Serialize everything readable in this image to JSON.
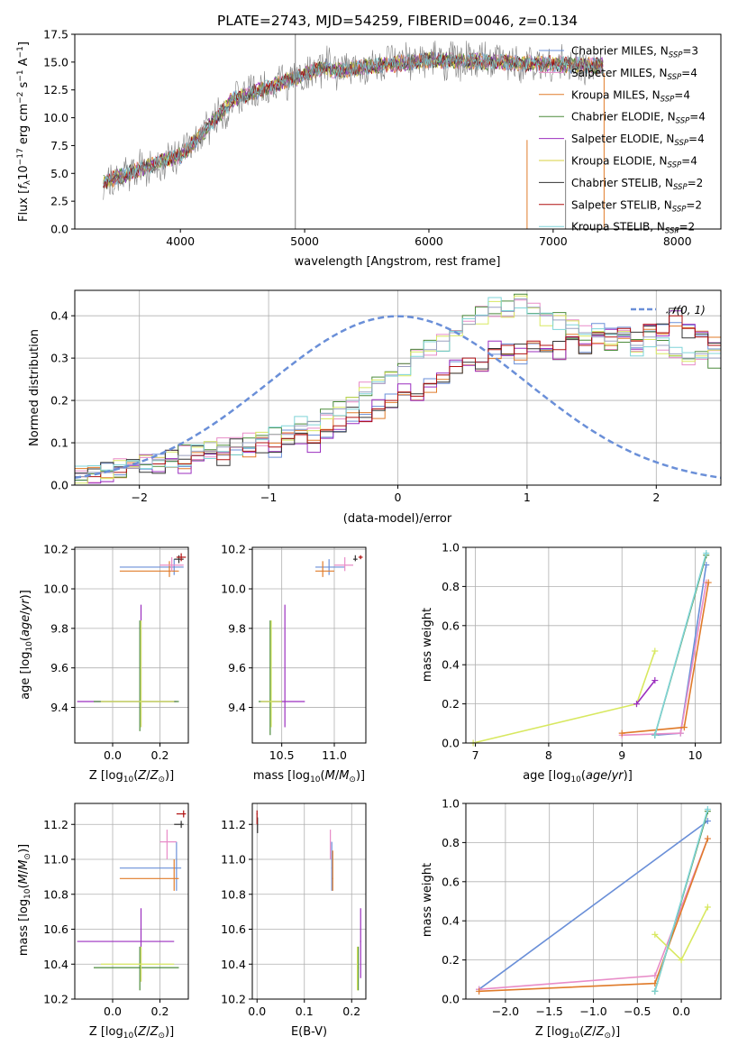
{
  "chart_data": [
    {
      "type": "line",
      "title": "PLATE=2743, MJD=54259, FIBERID=0046, z=0.134",
      "xlabel": "wavelength [Angstrom, rest frame]",
      "ylabel": "Flux [f_λ 10^-17 erg cm^-2 s^-1 A^-1]",
      "xlim": [
        3150,
        8350
      ],
      "ylim": [
        0,
        17.5
      ],
      "xticks": [
        "4000",
        "5000",
        "6000",
        "7000",
        "8000"
      ],
      "yticks": [
        "0.0",
        "2.5",
        "5.0",
        "7.5",
        "10.0",
        "12.5",
        "15.0",
        "17.5"
      ],
      "grid": false,
      "legend_position": "right",
      "series": [
        {
          "name": "Chabrier MILES, N_SSP=3",
          "color": "#6a8fd8"
        },
        {
          "name": "Salpeter MILES, N_SSP=4",
          "color": "#e88cc8"
        },
        {
          "name": "Kroupa MILES, N_SSP=4",
          "color": "#e07b2a"
        },
        {
          "name": "Chabrier ELODIE, N_SSP=4",
          "color": "#4b8b3b"
        },
        {
          "name": "Salpeter ELODIE, N_SSP=4",
          "color": "#9b2fbf"
        },
        {
          "name": "Kroupa ELODIE, N_SSP=4",
          "color": "#d8d040"
        },
        {
          "name": "Chabrier STELIB, N_SSP=2",
          "color": "#333333"
        },
        {
          "name": "Salpeter STELIB, N_SSP=2",
          "color": "#b01010"
        },
        {
          "name": "Kroupa STELIB, N_SSP=2",
          "color": "#7fd4d8"
        }
      ],
      "data_spectrum_color": "#808080"
    },
    {
      "type": "histogram",
      "xlabel": "(data-model)/error",
      "ylabel": "Normed distribution",
      "xlim": [
        -2.5,
        2.5
      ],
      "ylim": [
        0,
        0.46
      ],
      "xticks": [
        "−2",
        "−1",
        "0",
        "1",
        "2"
      ],
      "yticks": [
        "0.0",
        "0.1",
        "0.2",
        "0.3",
        "0.4"
      ],
      "grid": true,
      "legend_position": "top-right",
      "reference_curve": {
        "name": "𝒩(0, 1)",
        "color": "#6a8fd8"
      },
      "bin_width": 0.1,
      "bin_start": -2.5,
      "series": [
        {
          "color": "#b01010",
          "values": [
            0.02,
            0.02,
            0.03,
            0.03,
            0.04,
            0.05,
            0.05,
            0.06,
            0.05,
            0.07,
            0.08,
            0.06,
            0.09,
            0.08,
            0.1,
            0.09,
            0.11,
            0.12,
            0.1,
            0.13,
            0.14,
            0.16,
            0.15,
            0.18,
            0.2,
            0.22,
            0.21,
            0.24,
            0.26,
            0.28,
            0.3,
            0.29,
            0.32,
            0.33,
            0.31,
            0.34,
            0.33,
            0.32,
            0.35,
            0.33,
            0.36,
            0.35,
            0.37,
            0.34,
            0.38,
            0.36,
            0.4,
            0.37,
            0.35,
            0.33
          ]
        },
        {
          "color": "#9aa0c0",
          "values": [
            0.02,
            0.03,
            0.03,
            0.04,
            0.04,
            0.05,
            0.06,
            0.06,
            0.07,
            0.08,
            0.08,
            0.09,
            0.09,
            0.1,
            0.11,
            0.12,
            0.12,
            0.14,
            0.15,
            0.17,
            0.18,
            0.2,
            0.22,
            0.24,
            0.26,
            0.28,
            0.3,
            0.32,
            0.34,
            0.36,
            0.38,
            0.4,
            0.42,
            0.41,
            0.44,
            0.42,
            0.4,
            0.39,
            0.37,
            0.36,
            0.35,
            0.34,
            0.36,
            0.33,
            0.35,
            0.33,
            0.31,
            0.3,
            0.31,
            0.3
          ]
        }
      ]
    },
    {
      "type": "scatter",
      "xlabel": "Z [log10(Z/Z⊙)]",
      "ylabel": "age [log10(age/yr)]",
      "xlim": [
        -0.16,
        0.32
      ],
      "ylim": [
        9.22,
        10.21
      ],
      "xticks": [
        "0.0",
        "0.2"
      ],
      "yticks": [
        "9.4",
        "9.6",
        "9.8",
        "10.0",
        "10.2"
      ],
      "grid": true
    },
    {
      "type": "scatter",
      "xlabel": "mass [log10(M/M⊙)]",
      "ylabel": "",
      "xlim": [
        10.22,
        11.3
      ],
      "ylim": [
        9.22,
        10.21
      ],
      "xticks": [
        "10.5",
        "11.0"
      ],
      "yticks": [
        "9.4",
        "9.6",
        "9.8",
        "10.0",
        "10.2"
      ],
      "grid": true
    },
    {
      "type": "line",
      "xlabel": "age [log10(age/yr)]",
      "ylabel": "mass weight",
      "xlim": [
        6.87,
        10.35
      ],
      "ylim": [
        0,
        1
      ],
      "xticks": [
        "7",
        "8",
        "9",
        "10"
      ],
      "yticks": [
        "0.0",
        "0.2",
        "0.4",
        "0.6",
        "0.8",
        "1.0"
      ],
      "grid": true,
      "series": [
        {
          "color": "#6a8fd8",
          "x": [
            9.45,
            9.8,
            10.15
          ],
          "y": [
            0.04,
            0.05,
            0.91
          ]
        },
        {
          "color": "#e88cc8",
          "x": [
            9.0,
            9.8,
            10.15
          ],
          "y": [
            0.04,
            0.05,
            0.82
          ]
        },
        {
          "color": "#e07b2a",
          "x": [
            9.0,
            9.85,
            10.18
          ],
          "y": [
            0.05,
            0.08,
            0.82
          ]
        },
        {
          "color": "#d8e860",
          "x": [
            6.97,
            9.2,
            9.45
          ],
          "y": [
            0.0,
            0.2,
            0.47
          ]
        },
        {
          "color": "#9b2fbf",
          "x": [
            9.2,
            9.45
          ],
          "y": [
            0.2,
            0.32
          ]
        },
        {
          "color": "#4b8b3b",
          "x": [
            9.45,
            10.15
          ],
          "y": [
            0.04,
            0.96
          ]
        },
        {
          "color": "#7fd4d8",
          "x": [
            9.45,
            10.15
          ],
          "y": [
            0.04,
            0.97
          ]
        }
      ]
    },
    {
      "type": "scatter",
      "xlabel": "Z [log10(Z/Z⊙)]",
      "ylabel": "mass [log10(M/M⊙)]",
      "xlim": [
        -0.16,
        0.32
      ],
      "ylim": [
        10.2,
        11.32
      ],
      "xticks": [
        "0.0",
        "0.2"
      ],
      "yticks": [
        "10.2",
        "10.4",
        "10.6",
        "10.8",
        "11.0",
        "11.2"
      ],
      "grid": true
    },
    {
      "type": "scatter",
      "xlabel": "E(B-V)",
      "ylabel": "",
      "xlim": [
        -0.01,
        0.23
      ],
      "ylim": [
        10.2,
        11.32
      ],
      "xticks": [
        "0.0",
        "0.1",
        "0.2"
      ],
      "yticks": [
        "10.2",
        "10.4",
        "10.6",
        "10.8",
        "11.0",
        "11.2"
      ],
      "grid": true
    },
    {
      "type": "line",
      "xlabel": "Z [log10(Z/Z⊙)]",
      "ylabel": "mass weight",
      "xlim": [
        -2.45,
        0.45
      ],
      "ylim": [
        0,
        1
      ],
      "xticks": [
        "−2.0",
        "−1.5",
        "−1.0",
        "−0.5",
        "0.0"
      ],
      "yticks": [
        "0.0",
        "0.2",
        "0.4",
        "0.6",
        "0.8",
        "1.0"
      ],
      "grid": true,
      "series": [
        {
          "color": "#6a8fd8",
          "x": [
            -2.3,
            0.3
          ],
          "y": [
            0.05,
            0.91
          ]
        },
        {
          "color": "#e88cc8",
          "x": [
            -2.3,
            -0.3,
            0.3
          ],
          "y": [
            0.05,
            0.12,
            0.82
          ]
        },
        {
          "color": "#e07b2a",
          "x": [
            -2.3,
            -0.3,
            0.3
          ],
          "y": [
            0.04,
            0.08,
            0.82
          ]
        },
        {
          "color": "#d8e860",
          "x": [
            -0.3,
            0.0,
            0.3
          ],
          "y": [
            0.33,
            0.2,
            0.47
          ]
        },
        {
          "color": "#4b8b3b",
          "x": [
            -0.3,
            0.3
          ],
          "y": [
            0.04,
            0.96
          ]
        },
        {
          "color": "#7fd4d8",
          "x": [
            -0.3,
            0.3
          ],
          "y": [
            0.04,
            0.97
          ]
        }
      ]
    }
  ]
}
